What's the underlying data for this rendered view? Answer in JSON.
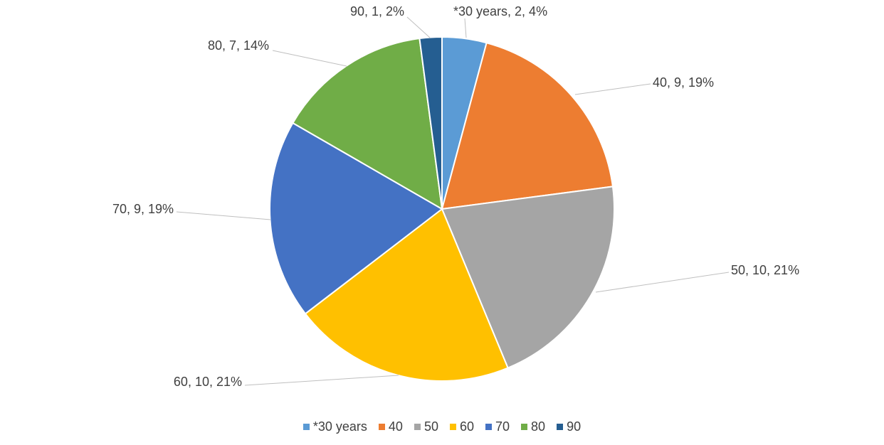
{
  "chart_data": {
    "type": "pie",
    "categories": [
      "*30 years",
      "40",
      "50",
      "60",
      "70",
      "80",
      "90"
    ],
    "values": [
      2,
      9,
      10,
      10,
      9,
      7,
      1
    ],
    "percents": [
      "4%",
      "19%",
      "21%",
      "21%",
      "19%",
      "14%",
      "2%"
    ],
    "data_labels": [
      "*30 years, 2, 4%",
      "40, 9, 19%",
      "50, 10, 21%",
      "60, 10, 21%",
      "70, 9, 19%",
      "80, 7, 14%",
      "90, 1, 2%"
    ],
    "colors": [
      "#5B9BD5",
      "#ED7D31",
      "#A5A5A5",
      "#FFC000",
      "#4472C4",
      "#70AD47",
      "#255E91"
    ],
    "legend_position": "bottom",
    "title": ""
  }
}
